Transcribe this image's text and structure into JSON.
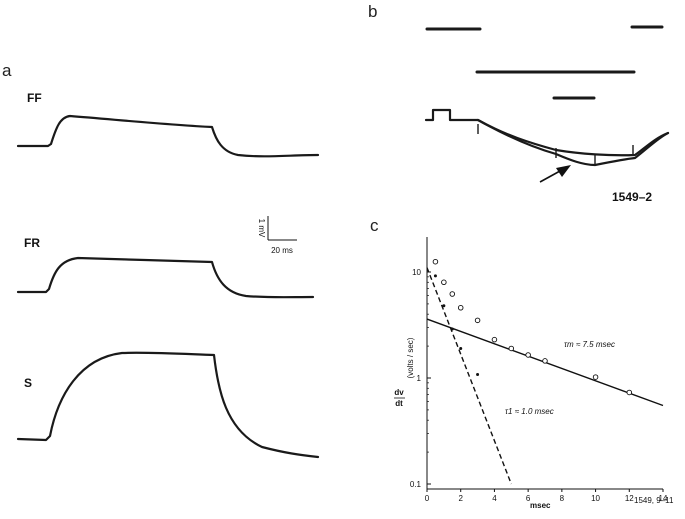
{
  "panels": {
    "a": {
      "letter": "a",
      "traces": [
        "FF",
        "FR",
        "S"
      ],
      "scale_bar": {
        "vertical": "1 mV",
        "horizontal": "20 ms"
      }
    },
    "b": {
      "letter": "b",
      "label": "1549–2"
    },
    "c": {
      "letter": "c",
      "footnote": "1549, 9–11",
      "annotations": {
        "tau_m": "τm ≈ 7.5 msec",
        "tau_1": "τ1 ≈ 1.0 msec"
      }
    }
  },
  "chart_data": {
    "type": "scatter",
    "xlabel": "msec",
    "ylabel": "dv/dt (volts/sec)",
    "xlim": [
      0,
      14
    ],
    "ylim": [
      0.1,
      15
    ],
    "yscale": "log",
    "x_ticks": [
      0,
      2,
      4,
      6,
      8,
      10,
      12,
      14
    ],
    "y_ticks": [
      0.1,
      1,
      10
    ],
    "y_tick_labels": [
      "0.1",
      "1",
      "10"
    ],
    "series": [
      {
        "marker": "open-circle",
        "points": [
          [
            0.5,
            12.5
          ],
          [
            1.0,
            8.0
          ],
          [
            1.5,
            6.2
          ],
          [
            2.0,
            4.6
          ],
          [
            3.0,
            3.5
          ],
          [
            4.0,
            2.3
          ],
          [
            5.0,
            1.9
          ],
          [
            6.0,
            1.65
          ],
          [
            7.0,
            1.45
          ],
          [
            10.0,
            1.02
          ],
          [
            12.0,
            0.73
          ]
        ]
      },
      {
        "marker": "filled-dot",
        "points": [
          [
            0.5,
            9.2
          ],
          [
            1.0,
            4.8
          ],
          [
            1.5,
            2.9
          ],
          [
            2.0,
            1.9
          ],
          [
            3.0,
            1.08
          ]
        ]
      }
    ],
    "fits": [
      {
        "style": "solid",
        "x": [
          0,
          14
        ],
        "y": [
          3.6,
          0.55
        ]
      },
      {
        "style": "dashed",
        "x": [
          0,
          5.0
        ],
        "y": [
          11.0,
          0.1
        ]
      }
    ]
  }
}
